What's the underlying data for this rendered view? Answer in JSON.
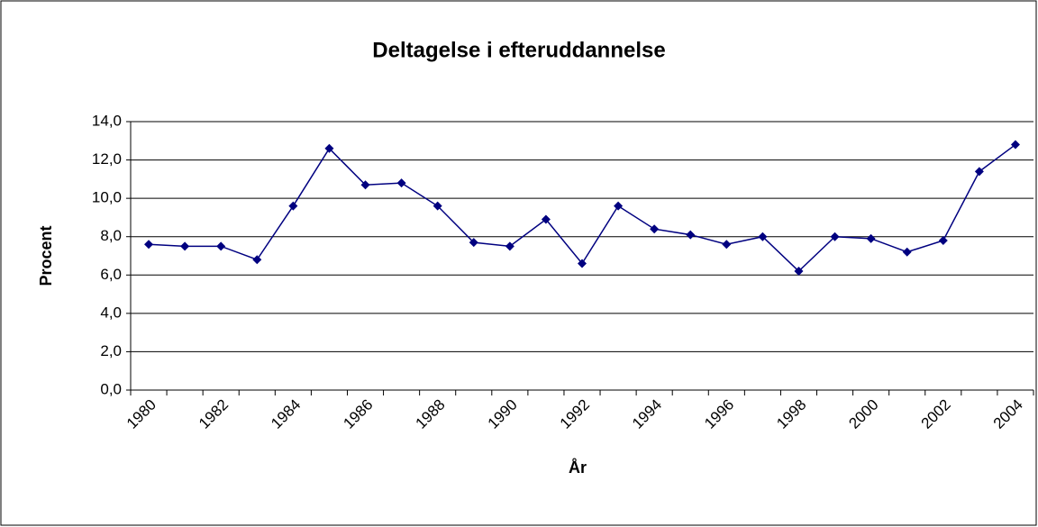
{
  "chart_data": {
    "type": "line",
    "title": "Deltagelse i efteruddannelse",
    "x_label": "År",
    "y_label": "Procent",
    "categories": [
      "1980",
      null,
      "1982",
      null,
      "1984",
      null,
      "1986",
      null,
      "1988",
      null,
      "1990",
      null,
      "1992",
      null,
      "1994",
      null,
      "1996",
      null,
      "1998",
      null,
      "2000",
      null,
      "2002",
      null,
      "2004"
    ],
    "series": [
      {
        "name": "Procent",
        "color": "#000080",
        "values": [
          7.6,
          7.5,
          7.5,
          6.8,
          9.6,
          12.6,
          10.7,
          10.8,
          9.6,
          7.7,
          7.5,
          8.9,
          6.6,
          9.6,
          8.4,
          8.1,
          7.6,
          8.0,
          6.2,
          8.0,
          7.9,
          7.2,
          7.8,
          11.4,
          12.8
        ]
      }
    ],
    "ylim": [
      0,
      14
    ],
    "yticks": [
      {
        "value": 0,
        "label": "0,0"
      },
      {
        "value": 2,
        "label": "2,0"
      },
      {
        "value": 4,
        "label": "4,0"
      },
      {
        "value": 6,
        "label": "6,0"
      },
      {
        "value": 8,
        "label": "8,0"
      },
      {
        "value": 10,
        "label": "10,0"
      },
      {
        "value": 12,
        "label": "12,0"
      },
      {
        "value": 14,
        "label": "14,0"
      }
    ],
    "grid": true
  }
}
